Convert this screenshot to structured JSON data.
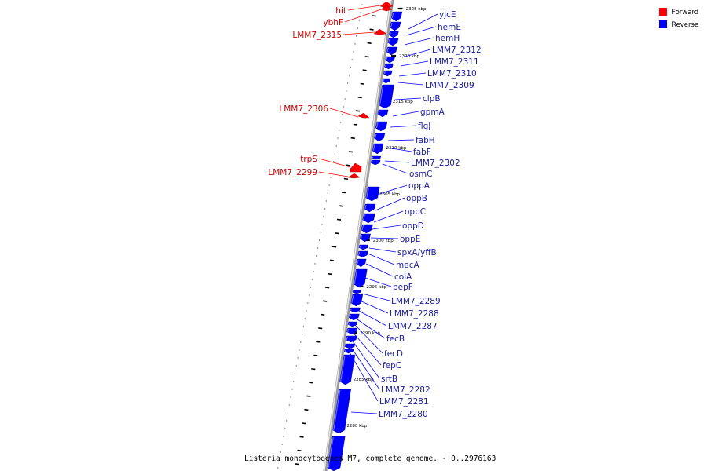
{
  "caption": "Listeria monocytogenes M7, complete genome. - 0..2976163",
  "legend": {
    "items": [
      {
        "label": "Forward",
        "color": "#ff0000"
      },
      {
        "label": "Reverse",
        "color": "#0000ff"
      }
    ]
  },
  "colors": {
    "forward": "#ff0000",
    "reverse": "#0000ff",
    "forward_label": "#cc0000",
    "reverse_label": "#1a1aa0"
  },
  "ticks": [
    "2325 kbp",
    "2320 kbp",
    "2315 kbp",
    "2310 kbp",
    "2305 kbp",
    "2300 kbp",
    "2295 kbp",
    "2290 kbp",
    "2285 kbp",
    "2280 kbp"
  ],
  "forward_genes": [
    "hit",
    "ybhF",
    "LMM7_2315",
    "LMM7_2306",
    "trpS",
    "LMM7_2299"
  ],
  "reverse_genes": [
    "yjcE",
    "hemE",
    "hemH",
    "LMM7_2312",
    "LMM7_2311",
    "LMM7_2310",
    "LMM7_2309",
    "clpB",
    "gpmA",
    "flgJ",
    "fabH",
    "fabF",
    "LMM7_2302",
    "osmC",
    "oppA",
    "oppB",
    "oppC",
    "oppD",
    "oppE",
    "spxA/yffB",
    "mecA",
    "coiA",
    "pepF",
    "LMM7_2289",
    "LMM7_2288",
    "LMM7_2287",
    "fecB",
    "fecD",
    "fepC",
    "srtB",
    "LMM7_2282",
    "LMM7_2281",
    "LMM7_2280"
  ]
}
